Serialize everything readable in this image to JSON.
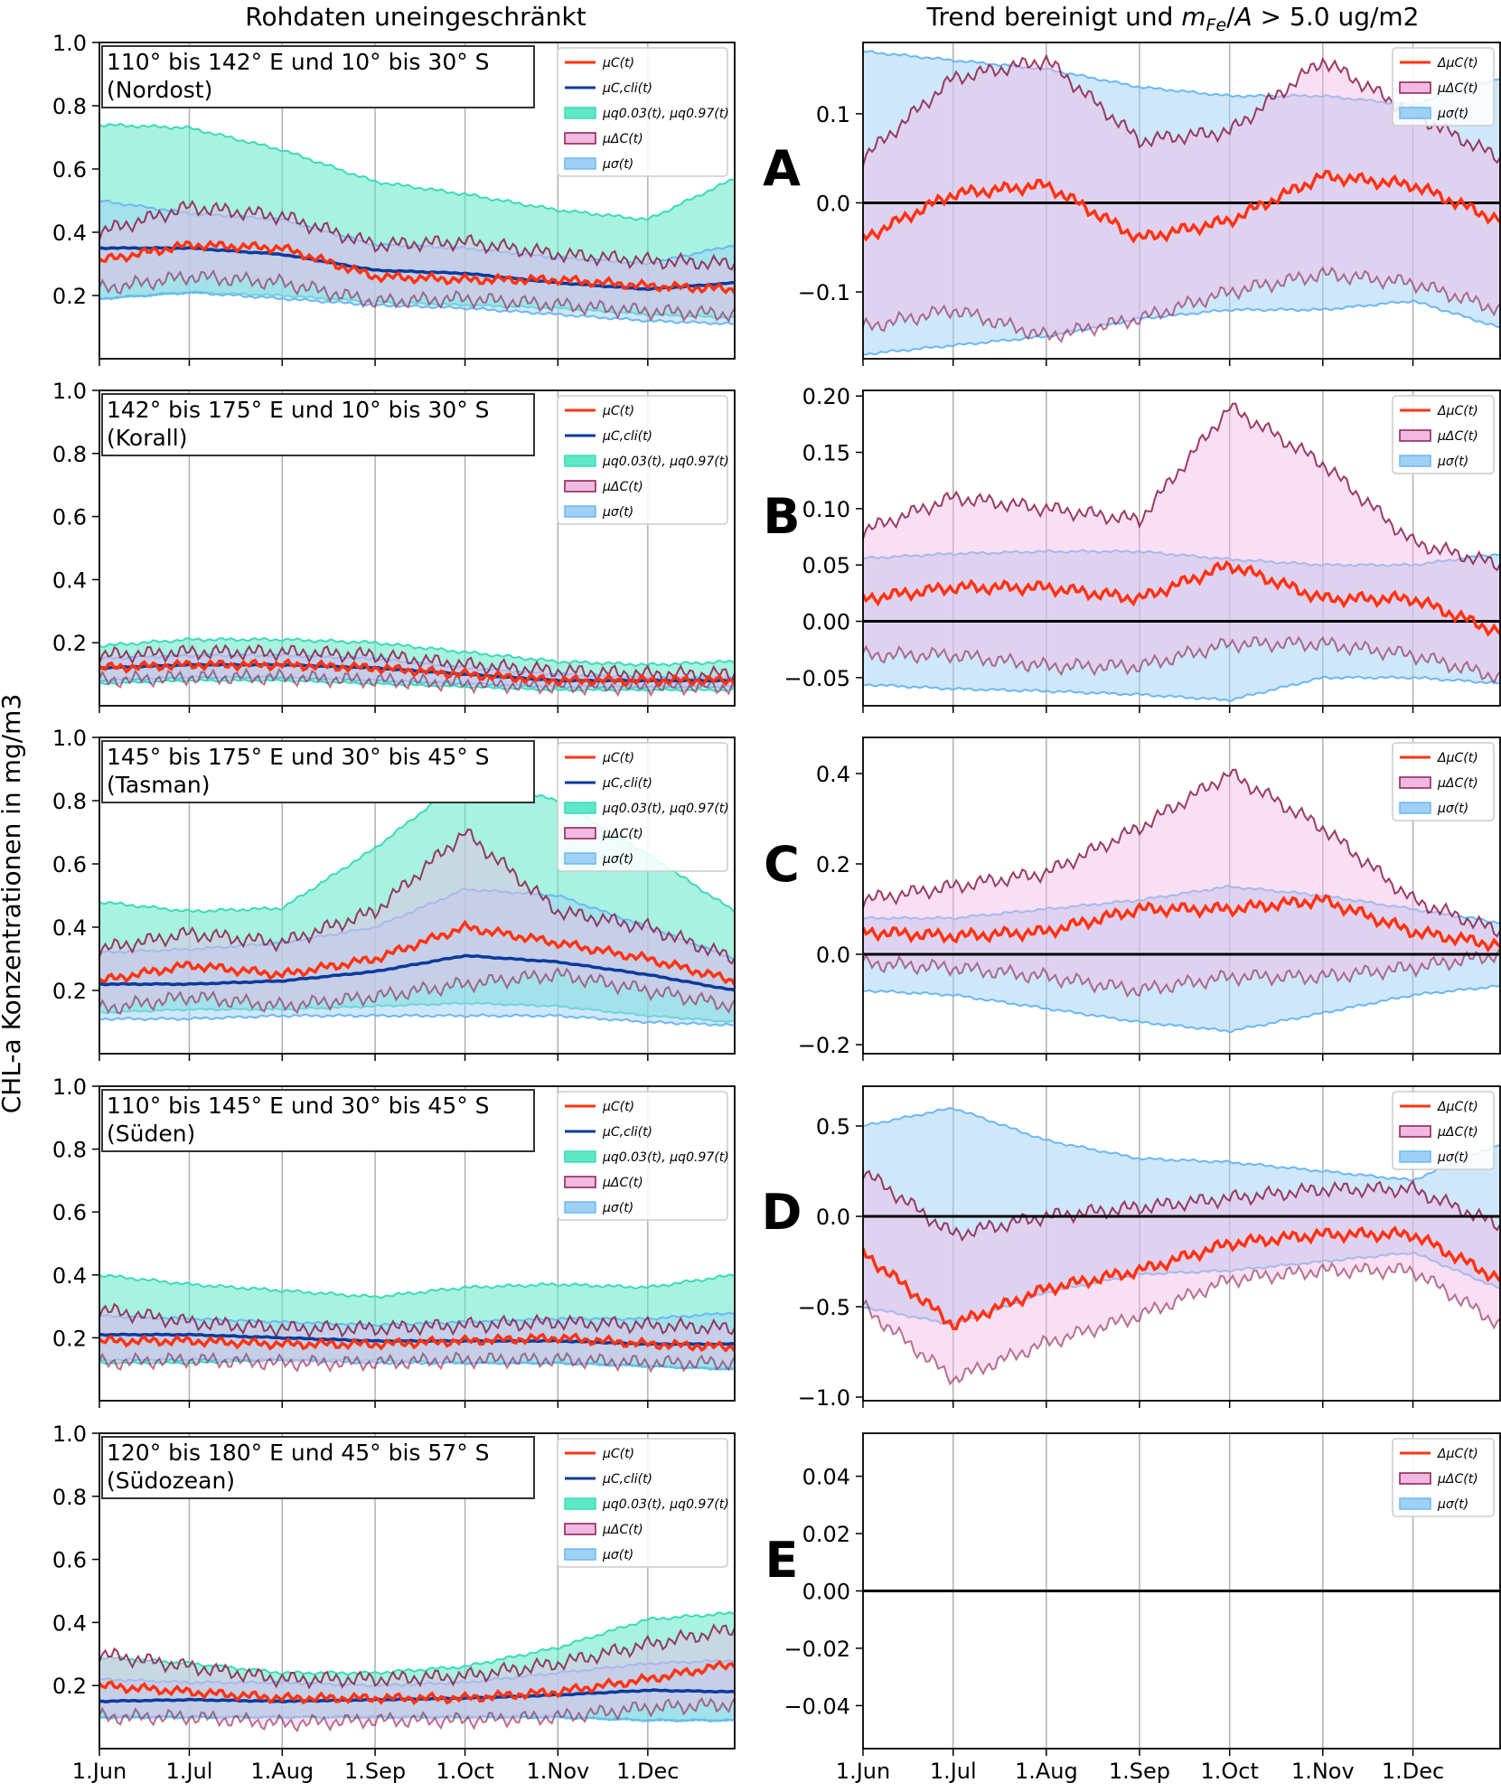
{
  "figure": {
    "col_titles": [
      "Rohdaten uneingeschränkt",
      "Trend bereinigt und m_Fe/A > 5.0 ug/m2"
    ],
    "y_label": "CHL-a Konzentrationen in mg/m3",
    "panel_letters": [
      "A",
      "B",
      "C",
      "D",
      "E"
    ]
  },
  "x_ticks": [
    "1.Jun",
    "1.Jul",
    "1.Aug",
    "1.Sep",
    "1.Oct",
    "1.Nov",
    "1.Dec"
  ],
  "legend_left": [
    "μC(t)",
    "μC,cli(t)",
    "μq0.03(t), μq0.97(t)",
    "μΔC(t)",
    "μσ(t)"
  ],
  "legend_right": [
    "ΔμC(t)",
    "μΔC(t)",
    "μσ(t)"
  ],
  "colors": {
    "raw": "#ff3311",
    "clim": "#0b3a9b",
    "quantile_fill": "#5ee8c6",
    "quantile_line": "#3ddbb8",
    "dc_fill": "#f2b8e4",
    "dc_line": "#8c1c48",
    "sigma_fill": "#9fd0f5",
    "sigma_line": "#6cb8f2",
    "zero_line": "#000000",
    "grid": "#b0b0b0"
  },
  "chart_data": [
    {
      "panel": "A-left",
      "type": "line",
      "region": "110° bis 142° E und 10° bis 30° S",
      "region_name": "(Nordost)",
      "ylim": [
        0,
        1.0
      ],
      "yticks": [
        "0.2",
        "0.4",
        "0.6",
        "0.8",
        "1.0"
      ],
      "x": [
        0,
        30,
        61,
        92,
        122,
        153,
        183,
        212
      ],
      "series": [
        {
          "name": "μC(t)",
          "values": [
            0.31,
            0.36,
            0.35,
            0.26,
            0.25,
            0.25,
            0.23,
            0.22
          ]
        },
        {
          "name": "μC,cli(t)",
          "values": [
            0.35,
            0.35,
            0.33,
            0.28,
            0.27,
            0.24,
            0.22,
            0.24
          ]
        },
        {
          "name": "μq0.03(t)",
          "values": [
            0.19,
            0.21,
            0.2,
            0.18,
            0.17,
            0.16,
            0.14,
            0.13
          ]
        },
        {
          "name": "μq0.97(t)",
          "values": [
            0.74,
            0.73,
            0.66,
            0.56,
            0.52,
            0.47,
            0.44,
            0.57
          ]
        },
        {
          "name": "μΔC(t) upper",
          "values": [
            0.4,
            0.48,
            0.45,
            0.36,
            0.37,
            0.33,
            0.31,
            0.3
          ]
        },
        {
          "name": "μΔC(t) lower",
          "values": [
            0.22,
            0.26,
            0.24,
            0.18,
            0.19,
            0.17,
            0.15,
            0.14
          ]
        },
        {
          "name": "μσ(t) upper",
          "values": [
            0.5,
            0.46,
            0.44,
            0.36,
            0.35,
            0.32,
            0.3,
            0.36
          ]
        },
        {
          "name": "μσ(t) lower",
          "values": [
            0.19,
            0.21,
            0.19,
            0.17,
            0.16,
            0.14,
            0.12,
            0.11
          ]
        }
      ]
    },
    {
      "panel": "A-right",
      "type": "line",
      "ylim": [
        -0.175,
        0.18
      ],
      "yticks": [
        "−0.1",
        "0.0",
        "0.1"
      ],
      "x": [
        0,
        30,
        61,
        92,
        122,
        153,
        183,
        212
      ],
      "series": [
        {
          "name": "ΔμC(t)",
          "values": [
            -0.04,
            0.01,
            0.02,
            -0.04,
            -0.02,
            0.03,
            0.02,
            -0.02
          ]
        },
        {
          "name": "μΔC(t) upper",
          "values": [
            0.05,
            0.14,
            0.16,
            0.07,
            0.08,
            0.16,
            0.1,
            0.05
          ]
        },
        {
          "name": "μΔC(t) lower",
          "values": [
            -0.14,
            -0.12,
            -0.15,
            -0.13,
            -0.1,
            -0.08,
            -0.09,
            -0.12
          ]
        },
        {
          "name": "μσ(t) upper",
          "values": [
            0.17,
            0.16,
            0.15,
            0.13,
            0.12,
            0.12,
            0.11,
            0.14
          ]
        },
        {
          "name": "μσ(t) lower",
          "values": [
            -0.17,
            -0.16,
            -0.15,
            -0.13,
            -0.12,
            -0.12,
            -0.11,
            -0.14
          ]
        }
      ]
    },
    {
      "panel": "B-left",
      "type": "line",
      "region": "142° bis 175° E und 10° bis 30° S",
      "region_name": "(Korall)",
      "ylim": [
        0,
        1.0
      ],
      "yticks": [
        "0.2",
        "0.4",
        "0.6",
        "0.8",
        "1.0"
      ],
      "x": [
        0,
        30,
        61,
        92,
        122,
        153,
        183,
        212
      ],
      "series": [
        {
          "name": "μC(t)",
          "values": [
            0.12,
            0.13,
            0.13,
            0.12,
            0.1,
            0.08,
            0.08,
            0.08
          ]
        },
        {
          "name": "μC,cli(t)",
          "values": [
            0.12,
            0.13,
            0.13,
            0.12,
            0.1,
            0.08,
            0.08,
            0.08
          ]
        },
        {
          "name": "μq0.03(t)",
          "values": [
            0.07,
            0.08,
            0.08,
            0.07,
            0.06,
            0.05,
            0.05,
            0.05
          ]
        },
        {
          "name": "μq0.97(t)",
          "values": [
            0.19,
            0.21,
            0.21,
            0.2,
            0.17,
            0.14,
            0.13,
            0.14
          ]
        },
        {
          "name": "μΔC(t) upper",
          "values": [
            0.16,
            0.17,
            0.17,
            0.16,
            0.13,
            0.11,
            0.1,
            0.1
          ]
        },
        {
          "name": "μΔC(t) lower",
          "values": [
            0.08,
            0.09,
            0.09,
            0.08,
            0.07,
            0.06,
            0.06,
            0.06
          ]
        },
        {
          "name": "μσ(t) upper",
          "values": [
            0.15,
            0.16,
            0.16,
            0.15,
            0.12,
            0.1,
            0.09,
            0.09
          ]
        },
        {
          "name": "μσ(t) lower",
          "values": [
            0.08,
            0.09,
            0.09,
            0.08,
            0.07,
            0.06,
            0.06,
            0.06
          ]
        }
      ]
    },
    {
      "panel": "B-right",
      "type": "line",
      "ylim": [
        -0.075,
        0.205
      ],
      "yticks": [
        "−0.05",
        "0.00",
        "0.05",
        "0.10",
        "0.15",
        "0.20"
      ],
      "x": [
        0,
        30,
        61,
        92,
        122,
        153,
        183,
        212
      ],
      "series": [
        {
          "name": "ΔμC(t)",
          "values": [
            0.02,
            0.03,
            0.03,
            0.02,
            0.05,
            0.02,
            0.02,
            -0.01
          ]
        },
        {
          "name": "μΔC(t) upper",
          "values": [
            0.08,
            0.11,
            0.1,
            0.09,
            0.19,
            0.14,
            0.07,
            0.05
          ]
        },
        {
          "name": "μΔC(t) lower",
          "values": [
            -0.03,
            -0.03,
            -0.04,
            -0.04,
            -0.02,
            -0.02,
            -0.03,
            -0.05
          ]
        },
        {
          "name": "μσ(t) upper",
          "values": [
            0.056,
            0.06,
            0.062,
            0.062,
            0.055,
            0.05,
            0.05,
            0.06
          ]
        },
        {
          "name": "μσ(t) lower",
          "values": [
            -0.056,
            -0.06,
            -0.062,
            -0.065,
            -0.07,
            -0.05,
            -0.05,
            -0.055
          ]
        }
      ]
    },
    {
      "panel": "C-left",
      "type": "line",
      "region": "145° bis 175° E und 30° bis 45° S",
      "region_name": "(Tasman)",
      "ylim": [
        0,
        1.0
      ],
      "yticks": [
        "0.2",
        "0.4",
        "0.6",
        "0.8",
        "1.0"
      ],
      "x": [
        0,
        30,
        61,
        92,
        122,
        153,
        183,
        212
      ],
      "series": [
        {
          "name": "μC(t)",
          "values": [
            0.23,
            0.28,
            0.25,
            0.3,
            0.4,
            0.35,
            0.3,
            0.23
          ]
        },
        {
          "name": "μC,cli(t)",
          "values": [
            0.22,
            0.22,
            0.23,
            0.26,
            0.31,
            0.29,
            0.25,
            0.2
          ]
        },
        {
          "name": "μq0.03(t)",
          "values": [
            0.13,
            0.14,
            0.14,
            0.15,
            0.16,
            0.15,
            0.12,
            0.1
          ]
        },
        {
          "name": "μq0.97(t)",
          "values": [
            0.48,
            0.45,
            0.46,
            0.65,
            0.87,
            0.8,
            0.63,
            0.45
          ]
        },
        {
          "name": "μΔC(t) upper",
          "values": [
            0.33,
            0.38,
            0.35,
            0.45,
            0.7,
            0.45,
            0.4,
            0.3
          ]
        },
        {
          "name": "μΔC(t) lower",
          "values": [
            0.14,
            0.18,
            0.15,
            0.18,
            0.22,
            0.25,
            0.2,
            0.15
          ]
        },
        {
          "name": "μσ(t) upper",
          "values": [
            0.32,
            0.33,
            0.35,
            0.4,
            0.52,
            0.5,
            0.4,
            0.3
          ]
        },
        {
          "name": "μσ(t) lower",
          "values": [
            0.11,
            0.11,
            0.12,
            0.12,
            0.12,
            0.12,
            0.1,
            0.09
          ]
        }
      ]
    },
    {
      "panel": "C-right",
      "type": "line",
      "ylim": [
        -0.22,
        0.48
      ],
      "yticks": [
        "−0.2",
        "0.0",
        "0.2",
        "0.4"
      ],
      "x": [
        0,
        30,
        61,
        92,
        122,
        153,
        183,
        212
      ],
      "series": [
        {
          "name": "ΔμC(t)",
          "values": [
            0.05,
            0.04,
            0.05,
            0.1,
            0.1,
            0.12,
            0.05,
            0.02
          ]
        },
        {
          "name": "μΔC(t) upper",
          "values": [
            0.12,
            0.15,
            0.18,
            0.28,
            0.4,
            0.28,
            0.12,
            0.05
          ]
        },
        {
          "name": "μΔC(t) lower",
          "values": [
            -0.02,
            -0.03,
            -0.05,
            -0.08,
            -0.05,
            -0.05,
            -0.03,
            0.0
          ]
        },
        {
          "name": "μσ(t) upper",
          "values": [
            0.08,
            0.08,
            0.1,
            0.12,
            0.15,
            0.13,
            0.1,
            0.07
          ]
        },
        {
          "name": "μσ(t) lower",
          "values": [
            -0.08,
            -0.09,
            -0.12,
            -0.15,
            -0.17,
            -0.13,
            -0.09,
            -0.07
          ]
        }
      ]
    },
    {
      "panel": "D-left",
      "type": "line",
      "region": "110° bis 145° E und 30° bis 45° S",
      "region_name": "(Süden)",
      "ylim": [
        0,
        1.0
      ],
      "yticks": [
        "0.2",
        "0.4",
        "0.6",
        "0.8",
        "1.0"
      ],
      "x": [
        0,
        30,
        61,
        92,
        122,
        153,
        183,
        212
      ],
      "series": [
        {
          "name": "μC(t)",
          "values": [
            0.19,
            0.19,
            0.18,
            0.18,
            0.19,
            0.2,
            0.18,
            0.17
          ]
        },
        {
          "name": "μC,cli(t)",
          "values": [
            0.21,
            0.21,
            0.2,
            0.19,
            0.19,
            0.19,
            0.18,
            0.18
          ]
        },
        {
          "name": "μq0.03(t)",
          "values": [
            0.12,
            0.12,
            0.13,
            0.13,
            0.12,
            0.12,
            0.11,
            0.1
          ]
        },
        {
          "name": "μq0.97(t)",
          "values": [
            0.4,
            0.37,
            0.35,
            0.33,
            0.36,
            0.37,
            0.36,
            0.4
          ]
        },
        {
          "name": "μΔC(t) upper",
          "values": [
            0.29,
            0.25,
            0.23,
            0.23,
            0.24,
            0.25,
            0.24,
            0.23
          ]
        },
        {
          "name": "μΔC(t) lower",
          "values": [
            0.12,
            0.13,
            0.12,
            0.12,
            0.13,
            0.13,
            0.12,
            0.12
          ]
        },
        {
          "name": "μσ(t) upper",
          "values": [
            0.27,
            0.26,
            0.25,
            0.24,
            0.25,
            0.26,
            0.26,
            0.28
          ]
        },
        {
          "name": "μσ(t) lower",
          "values": [
            0.13,
            0.13,
            0.13,
            0.12,
            0.12,
            0.12,
            0.11,
            0.1
          ]
        }
      ]
    },
    {
      "panel": "D-right",
      "type": "line",
      "ylim": [
        -1.02,
        0.72
      ],
      "yticks": [
        "−1.0",
        "−0.5",
        "0.0",
        "0.5"
      ],
      "x": [
        0,
        30,
        61,
        92,
        122,
        153,
        183,
        212
      ],
      "series": [
        {
          "name": "ΔμC(t)",
          "values": [
            -0.2,
            -0.6,
            -0.4,
            -0.3,
            -0.15,
            -0.1,
            -0.1,
            -0.35
          ]
        },
        {
          "name": "μΔC(t) upper",
          "values": [
            0.25,
            -0.1,
            0.0,
            0.05,
            0.1,
            0.15,
            0.15,
            -0.05
          ]
        },
        {
          "name": "μΔC(t) lower",
          "values": [
            -0.5,
            -0.9,
            -0.7,
            -0.55,
            -0.35,
            -0.3,
            -0.3,
            -0.6
          ]
        },
        {
          "name": "μσ(t) upper",
          "values": [
            0.5,
            0.6,
            0.42,
            0.32,
            0.3,
            0.25,
            0.2,
            0.4
          ]
        },
        {
          "name": "μσ(t) lower",
          "values": [
            -0.5,
            -0.6,
            -0.42,
            -0.32,
            -0.3,
            -0.25,
            -0.2,
            -0.4
          ]
        }
      ]
    },
    {
      "panel": "E-left",
      "type": "line",
      "region": "120° bis 180° E und 45° bis 57° S",
      "region_name": "(Südozean)",
      "ylim": [
        0,
        1.0
      ],
      "yticks": [
        "0.2",
        "0.4",
        "0.6",
        "0.8",
        "1.0"
      ],
      "x": [
        0,
        30,
        61,
        92,
        122,
        153,
        183,
        212
      ],
      "series": [
        {
          "name": "μC(t)",
          "values": [
            0.2,
            0.18,
            0.16,
            0.16,
            0.16,
            0.18,
            0.22,
            0.27
          ]
        },
        {
          "name": "μC,cli(t)",
          "values": [
            0.15,
            0.155,
            0.15,
            0.155,
            0.16,
            0.17,
            0.185,
            0.18
          ]
        },
        {
          "name": "μq0.03(t)",
          "values": [
            0.1,
            0.1,
            0.1,
            0.1,
            0.1,
            0.1,
            0.09,
            0.09
          ]
        },
        {
          "name": "μq0.97(t)",
          "values": [
            0.29,
            0.27,
            0.24,
            0.24,
            0.26,
            0.32,
            0.41,
            0.43
          ]
        },
        {
          "name": "μΔC(t) upper",
          "values": [
            0.3,
            0.26,
            0.22,
            0.22,
            0.23,
            0.27,
            0.33,
            0.38
          ]
        },
        {
          "name": "μΔC(t) lower",
          "values": [
            0.1,
            0.1,
            0.08,
            0.09,
            0.09,
            0.1,
            0.13,
            0.14
          ]
        },
        {
          "name": "μσ(t) upper",
          "values": [
            0.22,
            0.21,
            0.21,
            0.2,
            0.21,
            0.24,
            0.27,
            0.28
          ]
        },
        {
          "name": "μσ(t) lower",
          "values": [
            0.1,
            0.1,
            0.1,
            0.1,
            0.1,
            0.1,
            0.09,
            0.09
          ]
        }
      ]
    },
    {
      "panel": "E-right",
      "type": "line",
      "ylim": [
        -0.055,
        0.055
      ],
      "yticks": [
        "−0.04",
        "−0.02",
        "0.00",
        "0.02",
        "0.04"
      ],
      "x": [
        0,
        212
      ],
      "series": [
        {
          "name": "ΔμC(t)",
          "values": [
            0,
            0
          ]
        }
      ]
    }
  ]
}
